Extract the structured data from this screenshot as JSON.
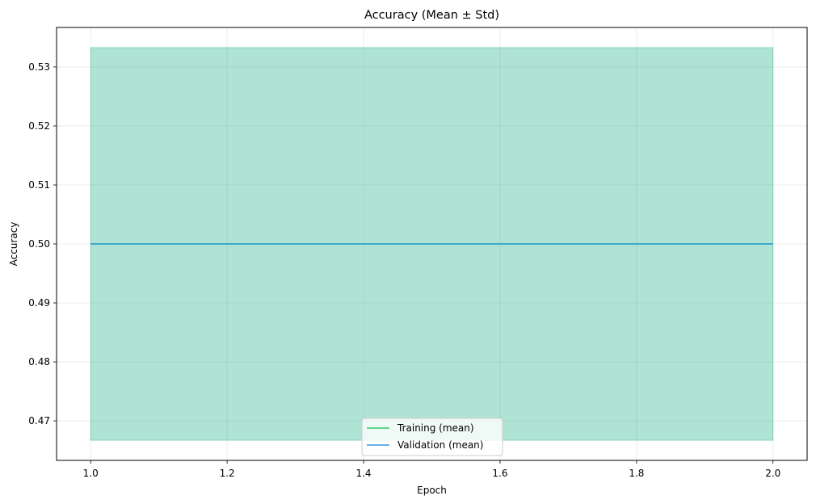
{
  "chart_data": {
    "type": "line",
    "title": "Accuracy (Mean ± Std)",
    "xlabel": "Epoch",
    "ylabel": "Accuracy",
    "xlim": [
      0.95,
      2.05
    ],
    "ylim": [
      0.4633,
      0.5367
    ],
    "x_ticks": [
      1.0,
      1.2,
      1.4,
      1.6,
      1.8,
      2.0
    ],
    "x_tick_labels": [
      "1.0",
      "1.2",
      "1.4",
      "1.6",
      "1.8",
      "2.0"
    ],
    "y_ticks": [
      0.47,
      0.48,
      0.49,
      0.5,
      0.51,
      0.52,
      0.53
    ],
    "y_tick_labels": [
      "0.47",
      "0.48",
      "0.49",
      "0.50",
      "0.51",
      "0.52",
      "0.53"
    ],
    "grid": true,
    "legend_position": "lower-center",
    "series": [
      {
        "name": "Training (mean)",
        "color": "#2ecc71",
        "x": [
          1.0,
          2.0
        ],
        "y": [
          0.5,
          0.5
        ],
        "std_band": {
          "lower": [
            0.4667,
            0.4667
          ],
          "upper": [
            0.5333,
            0.5333
          ],
          "color": "#2ecc71",
          "alpha": 0.2
        }
      },
      {
        "name": "Validation (mean)",
        "color": "#3498db",
        "x": [
          1.0,
          2.0
        ],
        "y": [
          0.5,
          0.5
        ],
        "std_band": {
          "lower": [
            0.4667,
            0.4667
          ],
          "upper": [
            0.5333,
            0.5333
          ],
          "color": "#1a9c9c",
          "alpha": 0.2
        }
      }
    ]
  }
}
